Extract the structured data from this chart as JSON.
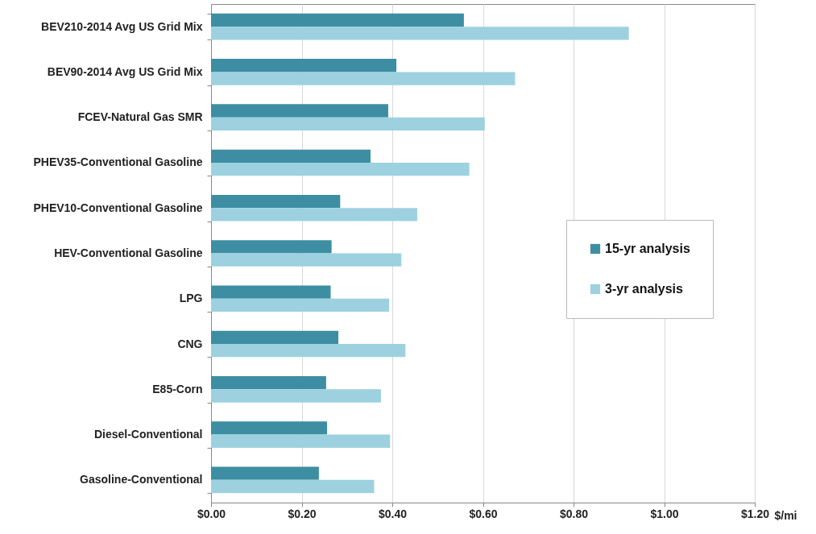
{
  "chart_data": {
    "type": "bar",
    "orientation": "horizontal",
    "xlabel": "$/mi",
    "categories": [
      "BEV210-2014 Avg US Grid Mix",
      "BEV90-2014 Avg US Grid Mix",
      "FCEV-Natural Gas SMR",
      "PHEV35-Conventional Gasoline",
      "PHEV10-Conventional Gasoline",
      "HEV-Conventional Gasoline",
      "LPG",
      "CNG",
      "E85-Corn",
      "Diesel-Conventional",
      "Gasoline-Conventional"
    ],
    "series": [
      {
        "name": "15-yr analysis",
        "color": "#3d8ea3",
        "values": [
          0.558,
          0.409,
          0.391,
          0.352,
          0.285,
          0.266,
          0.264,
          0.281,
          0.254,
          0.256,
          0.238
        ]
      },
      {
        "name": "3-yr analysis",
        "color": "#9dd1df",
        "values": [
          0.922,
          0.671,
          0.604,
          0.57,
          0.455,
          0.42,
          0.393,
          0.429,
          0.375,
          0.395,
          0.36
        ]
      }
    ],
    "xlim": [
      0,
      1.2
    ],
    "xticks": [
      {
        "value": 0,
        "label": "$0.00"
      },
      {
        "value": 0.2,
        "label": "$0.20"
      },
      {
        "value": 0.4,
        "label": "$0.40"
      },
      {
        "value": 0.6,
        "label": "$0.60"
      },
      {
        "value": 0.8,
        "label": "$0.80"
      },
      {
        "value": 1.0,
        "label": "$1.00"
      },
      {
        "value": 1.2,
        "label": "$1.20"
      }
    ],
    "grid": "x",
    "legend": "right"
  }
}
